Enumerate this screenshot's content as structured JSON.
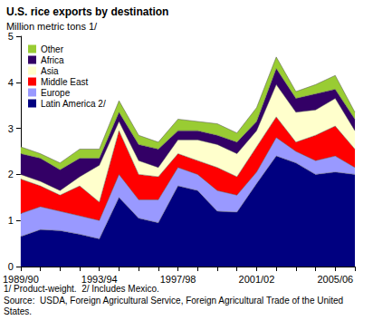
{
  "chart_data": {
    "type": "area",
    "title": "U.S. rice exports by destination",
    "y_label": "Million metric tons 1/",
    "annotations": [
      "1/ Product-weight.  2/ Includes Mexico.",
      "Source:  USDA, Foreign Agricultural Service, Foreign Agricultural Trade of the United States."
    ],
    "categories": [
      "1989/90",
      null,
      null,
      null,
      "1993/94",
      null,
      null,
      null,
      "1997/98",
      null,
      null,
      null,
      "2001/02",
      null,
      null,
      null,
      "2005/06",
      null
    ],
    "stacked": true,
    "grid": false,
    "legend": "upper left",
    "ylim": [
      0,
      5
    ],
    "yticks": [
      0,
      1,
      2,
      3,
      4,
      5
    ],
    "series": [
      {
        "name": "Latin America 2/",
        "color": "#000080",
        "values": [
          0.65,
          0.8,
          0.78,
          0.7,
          0.6,
          1.5,
          1.05,
          0.95,
          1.75,
          1.65,
          1.2,
          1.18,
          1.8,
          2.4,
          2.25,
          2.0,
          2.05,
          2.0
        ]
      },
      {
        "name": "Europe",
        "color": "#9999ff",
        "values": [
          0.5,
          0.5,
          0.42,
          0.4,
          0.4,
          0.5,
          0.4,
          0.5,
          0.4,
          0.35,
          0.45,
          0.37,
          0.25,
          0.4,
          0.25,
          0.3,
          0.35,
          0.15
        ]
      },
      {
        "name": "Middle East",
        "color": "#ff0000",
        "values": [
          0.75,
          0.45,
          0.35,
          0.65,
          0.4,
          0.95,
          0.55,
          0.5,
          0.3,
          0.3,
          0.5,
          0.4,
          0.55,
          0.45,
          0.2,
          0.55,
          0.65,
          0.4
        ]
      },
      {
        "name": "Asia",
        "color": "#ffffcc",
        "values": [
          0.1,
          0.1,
          0.1,
          0.2,
          0.8,
          0.2,
          0.3,
          0.2,
          0.3,
          0.45,
          0.5,
          0.5,
          0.35,
          0.7,
          0.65,
          0.55,
          0.6,
          0.4
        ]
      },
      {
        "name": "Africa",
        "color": "#330066",
        "values": [
          0.45,
          0.5,
          0.45,
          0.4,
          0.15,
          0.2,
          0.35,
          0.4,
          0.2,
          0.2,
          0.2,
          0.25,
          0.2,
          0.35,
          0.3,
          0.35,
          0.2,
          0.25
        ]
      },
      {
        "name": "Other",
        "color": "#99cc33",
        "values": [
          0.15,
          0.1,
          0.15,
          0.2,
          0.2,
          0.25,
          0.2,
          0.15,
          0.25,
          0.2,
          0.25,
          0.2,
          0.3,
          0.25,
          0.15,
          0.2,
          0.3,
          0.15
        ]
      }
    ]
  }
}
